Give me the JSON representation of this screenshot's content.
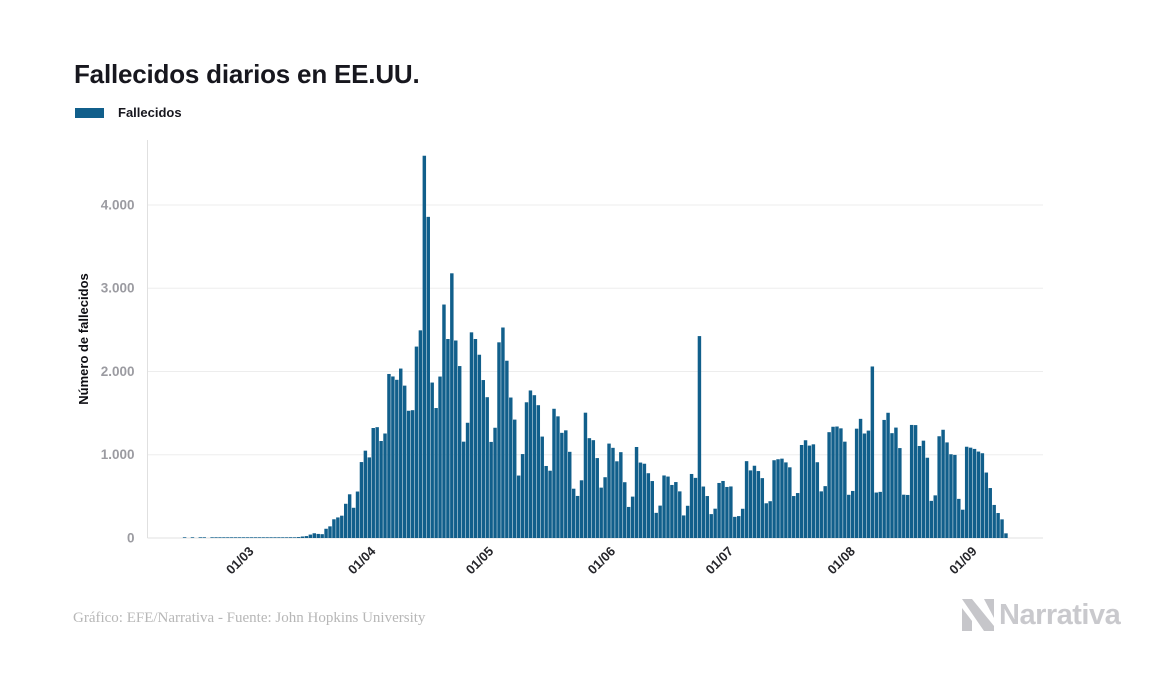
{
  "title": "Fallecidos diarios en EE.UU.",
  "legend": {
    "label": "Fallecidos",
    "swatch_color": "#115f8b"
  },
  "footer": {
    "credit": "Gráfico: EFE/Narrativa - Fuente: John Hopkins University"
  },
  "branding": {
    "logo_text": "Narrativa"
  },
  "chart_data": {
    "type": "bar",
    "title": "Fallecidos diarios en EE.UU.",
    "series_name": "Fallecidos",
    "xlabel": "",
    "ylabel": "Número de fallecidos",
    "ylim": [
      0,
      4780
    ],
    "grid": "horizontal",
    "legend_position": "top-left",
    "bar_color": "#115f8b",
    "axis_color": "#e0e0e0",
    "gridline_color": "#ededed",
    "start_date": "2020-02-06",
    "frequency": "daily",
    "y_ticks": [
      {
        "label": "0",
        "value": 0
      },
      {
        "label": "1.000",
        "value": 1000
      },
      {
        "label": "2.000",
        "value": 2000
      },
      {
        "label": "3.000",
        "value": 3000
      },
      {
        "label": "4.000",
        "value": 4000
      }
    ],
    "x_ticks": [
      {
        "label": "01/03",
        "day_index": 24
      },
      {
        "label": "01/04",
        "day_index": 55
      },
      {
        "label": "01/05",
        "day_index": 85
      },
      {
        "label": "01/06",
        "day_index": 116
      },
      {
        "label": "01/07",
        "day_index": 146
      },
      {
        "label": "01/08",
        "day_index": 177
      },
      {
        "label": "01/09",
        "day_index": 208
      }
    ],
    "values": [
      0,
      0,
      0,
      0,
      0,
      0,
      0,
      0,
      0,
      1,
      0,
      1,
      0,
      1,
      1,
      0,
      1,
      1,
      2,
      1,
      2,
      1,
      2,
      3,
      1,
      5,
      1,
      4,
      1,
      3,
      2,
      4,
      4,
      6,
      4,
      3,
      9,
      8,
      11,
      18,
      23,
      41,
      57,
      49,
      46,
      111,
      140,
      225,
      247,
      268,
      411,
      525,
      363,
      558,
      912,
      1049,
      968,
      1321,
      1331,
      1165,
      1255,
      1970,
      1940,
      1900,
      2035,
      1830,
      1528,
      1535,
      2299,
      2494,
      4591,
      3857,
      1867,
      1561,
      1939,
      2804,
      2390,
      3179,
      2372,
      2065,
      1157,
      1384,
      2470,
      2390,
      2201,
      1897,
      1691,
      1154,
      1324,
      2350,
      2528,
      2129,
      1687,
      1422,
      750,
      1008,
      1630,
      1772,
      1715,
      1595,
      1218,
      865,
      808,
      1552,
      1461,
      1263,
      1293,
      1035,
      592,
      505,
      693,
      1505,
      1199,
      1175,
      960,
      605,
      730,
      1134,
      1083,
      921,
      1031,
      670,
      373,
      497,
      1093,
      906,
      892,
      778,
      684,
      302,
      389,
      751,
      738,
      637,
      672,
      560,
      271,
      387,
      769,
      722,
      2425,
      618,
      504,
      287,
      352,
      661,
      685,
      613,
      619,
      254,
      263,
      351,
      923,
      812,
      868,
      804,
      719,
      417,
      442,
      934,
      946,
      953,
      908,
      849,
      504,
      540,
      1117,
      1174,
      1110,
      1125,
      910,
      560,
      623,
      1271,
      1336,
      1339,
      1317,
      1157,
      519,
      565,
      1313,
      1431,
      1255,
      1290,
      2060,
      546,
      554,
      1418,
      1504,
      1259,
      1326,
      1080,
      520,
      517,
      1358,
      1356,
      1105,
      1169,
      964,
      446,
      512,
      1222,
      1300,
      1148,
      1006,
      998,
      470,
      340,
      1096,
      1085,
      1070,
      1038,
      1018,
      786,
      600,
      397,
      300,
      224,
      56
    ]
  }
}
